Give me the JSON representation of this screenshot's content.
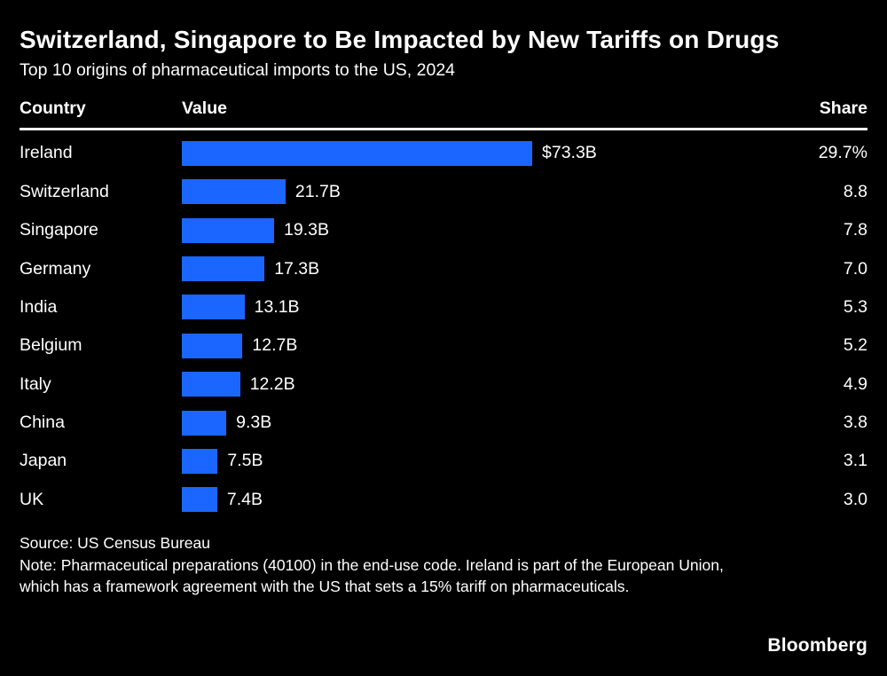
{
  "chart_data": {
    "type": "bar",
    "orientation": "horizontal",
    "title": "Switzerland, Singapore to Be Impacted by New Tariffs on Drugs",
    "subtitle": "Top 10 origins of pharmaceutical imports to the US, 2024",
    "columns": {
      "country": "Country",
      "value": "Value",
      "share": "Share"
    },
    "bar_color": "#1A66FF",
    "value_unit": "billion USD",
    "xlim": [
      0,
      73.3
    ],
    "rows": [
      {
        "country": "Ireland",
        "value": 73.3,
        "value_label": "$73.3B",
        "share": "29.7%"
      },
      {
        "country": "Switzerland",
        "value": 21.7,
        "value_label": "21.7B",
        "share": "8.8"
      },
      {
        "country": "Singapore",
        "value": 19.3,
        "value_label": "19.3B",
        "share": "7.8"
      },
      {
        "country": "Germany",
        "value": 17.3,
        "value_label": "17.3B",
        "share": "7.0"
      },
      {
        "country": "India",
        "value": 13.1,
        "value_label": "13.1B",
        "share": "5.3"
      },
      {
        "country": "Belgium",
        "value": 12.7,
        "value_label": "12.7B",
        "share": "5.2"
      },
      {
        "country": "Italy",
        "value": 12.2,
        "value_label": "12.2B",
        "share": "4.9"
      },
      {
        "country": "China",
        "value": 9.3,
        "value_label": "9.3B",
        "share": "3.8"
      },
      {
        "country": "Japan",
        "value": 7.5,
        "value_label": "7.5B",
        "share": "3.1"
      },
      {
        "country": "UK",
        "value": 7.4,
        "value_label": "7.4B",
        "share": "3.0"
      }
    ]
  },
  "footer": {
    "source": "Source: US Census Bureau",
    "note": "Note: Pharmaceutical preparations (40100) in the end-use code. Ireland is part of the European Union, which has a framework agreement with the US that sets a 15% tariff on pharmaceuticals.",
    "brand": "Bloomberg"
  }
}
